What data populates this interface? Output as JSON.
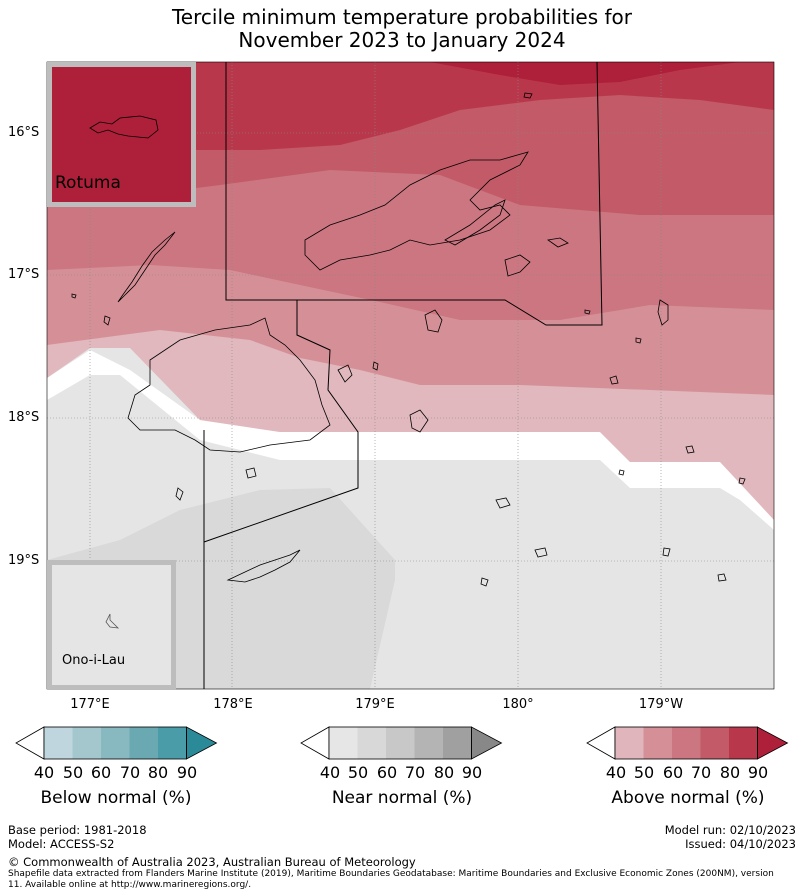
{
  "title_line1": "Tercile minimum temperature probabilities for",
  "title_line2": "November 2023 to January 2024",
  "lat_labels": [
    "16°S",
    "17°S",
    "18°S",
    "19°S"
  ],
  "lon_labels": [
    "177°E",
    "178°E",
    "179°E",
    "180°",
    "179°W"
  ],
  "insets": {
    "rotuma": "Rotuma",
    "ono": "Ono-i-Lau"
  },
  "colorbars": {
    "below": {
      "title": "Below normal (%)",
      "ticks": [
        "40",
        "50",
        "60",
        "70",
        "80",
        "90"
      ],
      "colors": [
        "#bfd6de",
        "#a4c7ce",
        "#88b8c0",
        "#6aa8b2",
        "#4a9ca8",
        "#2b8a98"
      ]
    },
    "near": {
      "title": "Near normal (%)",
      "ticks": [
        "40",
        "50",
        "60",
        "70",
        "80",
        "90"
      ],
      "colors": [
        "#e6e6e6",
        "#d8d8d8",
        "#c8c8c8",
        "#b4b4b4",
        "#a0a0a0",
        "#888888"
      ]
    },
    "above": {
      "title": "Above normal (%)",
      "ticks": [
        "40",
        "50",
        "60",
        "70",
        "80",
        "90"
      ],
      "colors": [
        "#e0b6bc",
        "#d59097",
        "#cb7680",
        "#c25a67",
        "#b9374b",
        "#ae1f3a"
      ]
    }
  },
  "footer": {
    "base_period": "Base period: 1981-2018",
    "model": "Model: ACCESS-S2",
    "model_run": "Model run: 02/10/2023",
    "issued": "Issued: 04/10/2023",
    "copyright": "© Commonwealth of Australia 2023, Australian Bureau of Meteorology",
    "shapefile_line1": "Shapefile data extracted from Flanders Marine Institute (2019), Maritime Boundaries Geodatabase: Maritime Boundaries and Exclusive Economic Zones (200NM), version",
    "shapefile_line2": "11. Available online at http://www.marineregions.org/."
  }
}
